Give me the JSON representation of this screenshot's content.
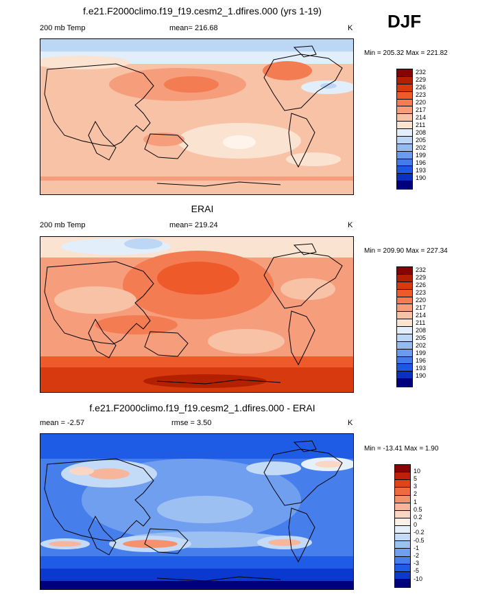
{
  "season": "DJF",
  "panels": [
    {
      "title": "f.e21.F2000climo.f19_f19.cesm2_1.dfires.000 (yrs 1-19)",
      "left_label": "200 mb Temp",
      "center_label": "mean= 216.68",
      "units": "K",
      "min_max": "Min = 205.32 Max = 221.82",
      "colorbar_levels": [
        "232",
        "229",
        "226",
        "223",
        "220",
        "217",
        "214",
        "211",
        "208",
        "205",
        "202",
        "199",
        "196",
        "193",
        "190"
      ]
    },
    {
      "title": "ERAI",
      "left_label": "200 mb Temp",
      "center_label": "mean= 219.24",
      "units": "K",
      "min_max": "Min = 209.90 Max = 227.34",
      "colorbar_levels": [
        "232",
        "229",
        "226",
        "223",
        "220",
        "217",
        "214",
        "211",
        "208",
        "205",
        "202",
        "199",
        "196",
        "193",
        "190"
      ]
    },
    {
      "title": "f.e21.F2000climo.f19_f19.cesm2_1.dfires.000 - ERAI",
      "left_label": "mean =  -2.57",
      "center_label": "rmse =   3.50",
      "units": "K",
      "min_max": "Min = -13.41 Max =   1.90",
      "colorbar_levels": [
        "10",
        "5",
        "3",
        "2",
        "1",
        "0.5",
        "0.2",
        "0",
        "-0.2",
        "-0.5",
        "-1",
        "-2",
        "-3",
        "-5",
        "-10"
      ]
    }
  ],
  "colors": {
    "abs_scale": [
      "#8b0000",
      "#b22000",
      "#d83a10",
      "#ee5a2a",
      "#f47c52",
      "#f69e7c",
      "#f8c2a6",
      "#fbe3d2",
      "#e2eefa",
      "#bcd6f6",
      "#93bbf2",
      "#6a9cee",
      "#437cea",
      "#1d58e4",
      "#0a2fc4",
      "#00007e"
    ],
    "diff_scale": [
      "#8b0000",
      "#c0200a",
      "#e04418",
      "#ef6a3e",
      "#f5916c",
      "#f7b69c",
      "#fad7c4",
      "#fdf0e8",
      "#e6f0fb",
      "#c4dbf7",
      "#9dc0f3",
      "#719ff0",
      "#467eec",
      "#1f5ce6",
      "#0b38cf",
      "#00007e"
    ]
  }
}
